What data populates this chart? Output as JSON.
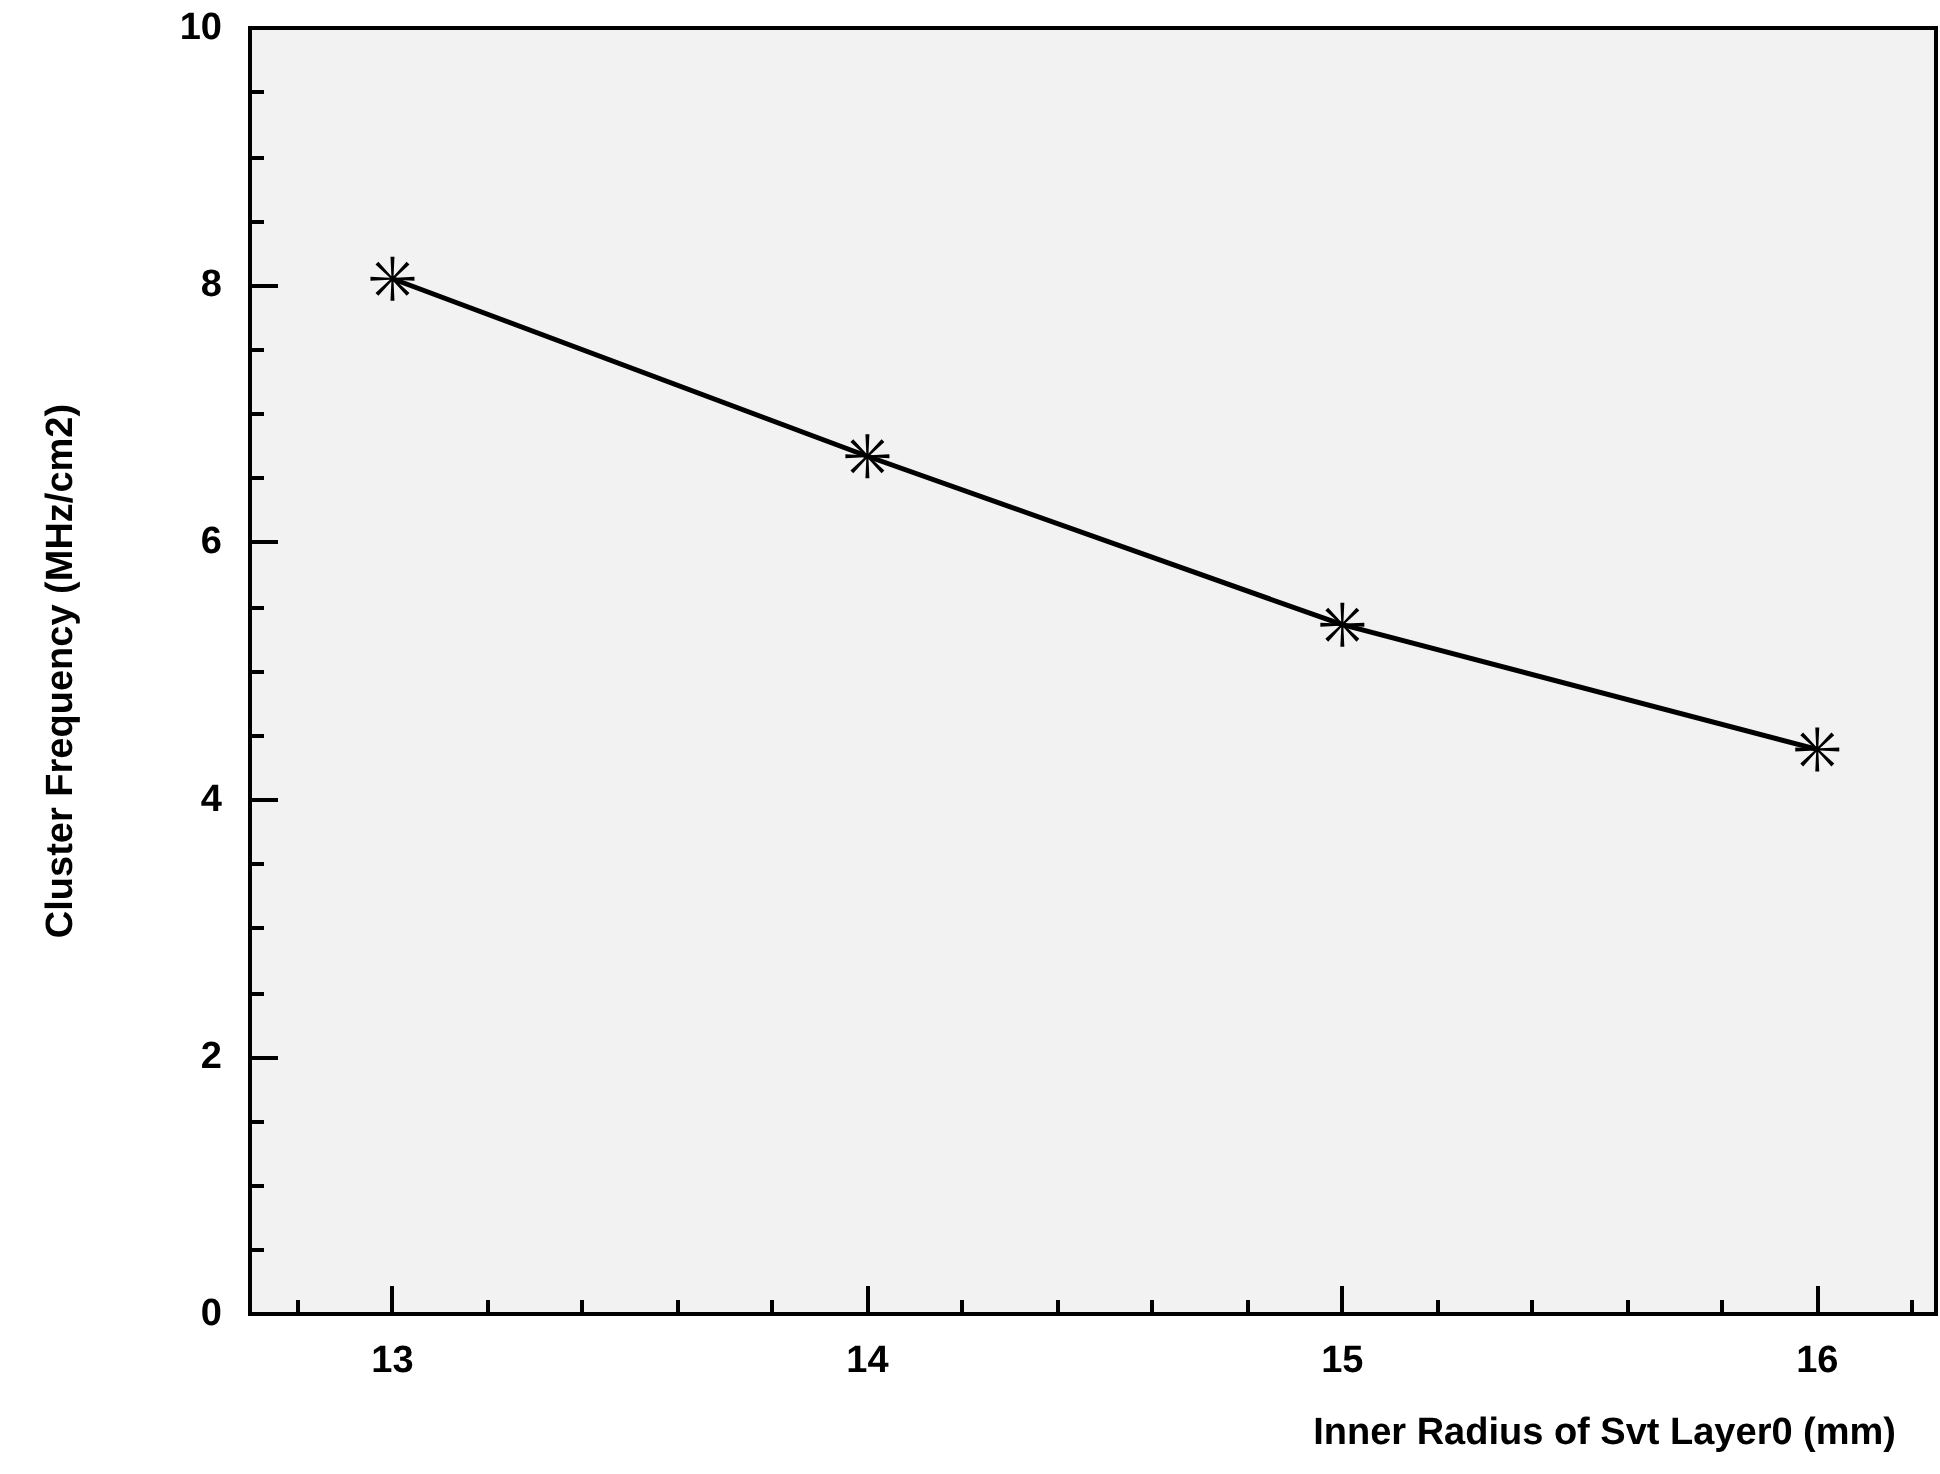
{
  "chart_data": {
    "type": "line",
    "xlabel": "Inner Radius of Svt Layer0 (mm)",
    "ylabel": "Cluster Frequency (MHz/cm2)",
    "x": [
      13,
      14,
      15,
      16
    ],
    "series": [
      {
        "color": "#000000",
        "values": [
          8.05,
          6.67,
          5.36,
          4.39
        ]
      }
    ],
    "xlim": [
      12.7,
      16.25
    ],
    "xticks": [
      13,
      14,
      15,
      16
    ],
    "ylim": [
      0,
      10
    ],
    "yticks": [
      0,
      2,
      4,
      6,
      8,
      10
    ],
    "grid": false,
    "marker": "cross",
    "line_style": "solid"
  }
}
